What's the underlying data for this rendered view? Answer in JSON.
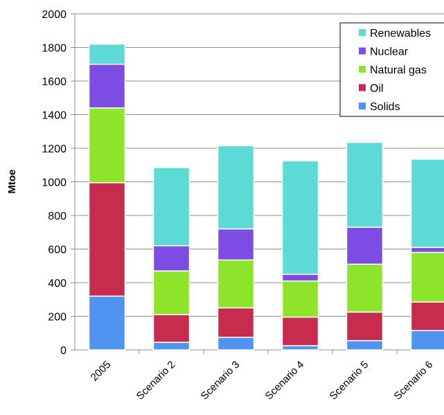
{
  "chart_data": {
    "type": "bar",
    "stacked": true,
    "categories": [
      "2005",
      "Scenario 2",
      "Scenario 3",
      "Scenario 4",
      "Scenario 5",
      "Scenario 6"
    ],
    "series": [
      {
        "name": "Solids",
        "color": "#4f94f0",
        "values": [
          320,
          45,
          75,
          25,
          55,
          115
        ]
      },
      {
        "name": "Oil",
        "color": "#c72c4f",
        "values": [
          675,
          165,
          175,
          170,
          170,
          170
        ]
      },
      {
        "name": "Natural gas",
        "color": "#8ee32b",
        "values": [
          445,
          260,
          285,
          215,
          285,
          295
        ]
      },
      {
        "name": "Nuclear",
        "color": "#7d4de3",
        "values": [
          260,
          150,
          185,
          40,
          220,
          30
        ]
      },
      {
        "name": "Renewables",
        "color": "#5bdad6",
        "values": [
          120,
          465,
          495,
          675,
          505,
          525
        ]
      }
    ],
    "title": "",
    "xlabel": "",
    "ylabel": "Mtoe",
    "ylim": [
      0,
      2000
    ],
    "yticks": [
      "0",
      "200",
      "400",
      "600",
      "800",
      "1000",
      "1200",
      "1400",
      "1600",
      "1800",
      "2000"
    ],
    "grid": true,
    "legend_position": "top-right",
    "legend_order": [
      "Renewables",
      "Nuclear",
      "Natural gas",
      "Oil",
      "Solids"
    ]
  }
}
